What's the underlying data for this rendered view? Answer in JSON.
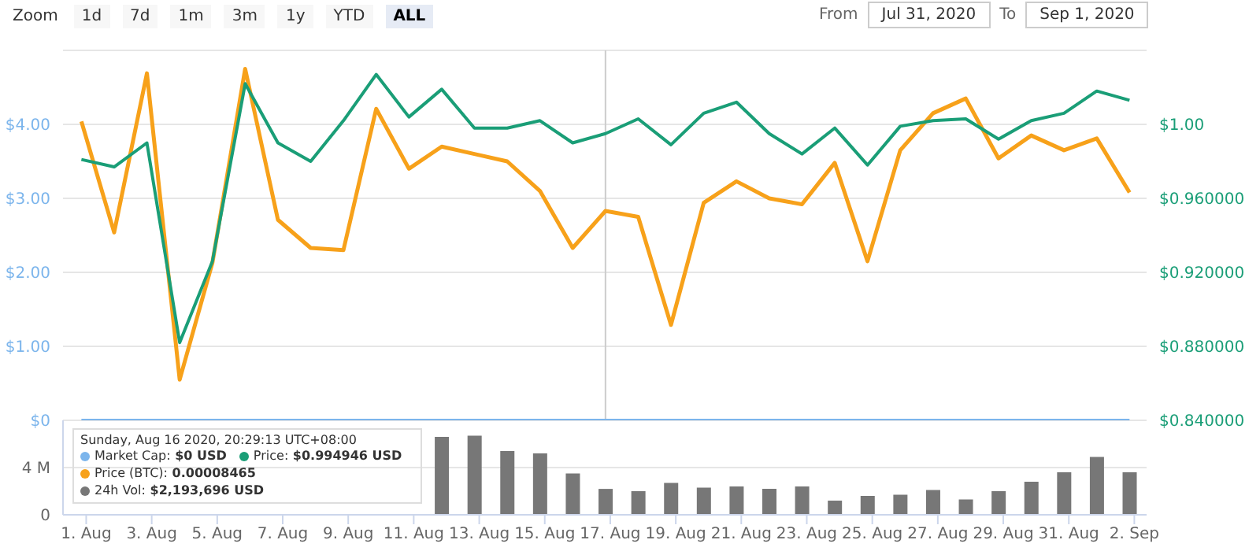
{
  "chart_data": [
    {
      "type": "line",
      "x": [
        "2020-07-31T20:29",
        "2020-08-01T20:29",
        "2020-08-02T20:29",
        "2020-08-03T20:29",
        "2020-08-04T20:29",
        "2020-08-05T20:29",
        "2020-08-06T20:29",
        "2020-08-07T20:29",
        "2020-08-08T20:29",
        "2020-08-09T20:29",
        "2020-08-10T20:29",
        "2020-08-11T20:29",
        "2020-08-12T20:29",
        "2020-08-13T20:29",
        "2020-08-14T20:29",
        "2020-08-15T20:29",
        "2020-08-16T20:29",
        "2020-08-17T20:29",
        "2020-08-18T20:29",
        "2020-08-19T20:29",
        "2020-08-20T20:29",
        "2020-08-21T20:29",
        "2020-08-22T20:29",
        "2020-08-23T20:29",
        "2020-08-24T20:29",
        "2020-08-25T20:29",
        "2020-08-26T20:29",
        "2020-08-27T20:29",
        "2020-08-28T20:29",
        "2020-08-29T20:29",
        "2020-08-30T20:29",
        "2020-08-31T20:29",
        "2020-09-01T20:29"
      ],
      "series": [
        {
          "color": "#7cb5ec",
          "values": [
            0,
            0,
            0,
            0,
            0,
            0,
            0,
            0,
            0,
            0,
            0,
            0,
            0,
            0,
            0,
            0,
            0,
            0,
            0,
            0,
            0,
            0,
            0,
            0,
            0,
            0,
            0,
            0,
            0,
            0,
            0,
            0,
            0
          ]
        },
        {
          "color": "#f7a11a",
          "values": [
            4.04,
            2.54,
            4.69,
            0.55,
            2.13,
            4.75,
            2.71,
            2.33,
            2.3,
            4.21,
            3.4,
            3.7,
            3.6,
            3.5,
            3.1,
            2.33,
            2.83,
            2.75,
            1.29,
            2.94,
            3.23,
            3.0,
            2.92,
            3.48,
            2.15,
            3.65,
            4.15,
            4.35,
            3.54,
            3.85,
            3.65,
            3.81,
            3.08
          ]
        },
        {
          "color": "#1a9e77",
          "axis": "y2",
          "values": [
            0.981,
            0.977,
            0.99,
            0.882,
            0.926,
            1.022,
            0.99,
            0.98,
            1.002,
            1.027,
            1.004,
            1.019,
            0.998,
            0.998,
            1.002,
            0.99,
            0.995,
            1.003,
            0.989,
            1.006,
            1.012,
            0.995,
            0.984,
            0.998,
            0.978,
            0.999,
            1.002,
            1.003,
            0.992,
            1.002,
            1.006,
            1.018,
            1.013
          ]
        }
      ],
      "xlim": [
        "2020-07-31T07:00",
        "2020-09-02T09:00"
      ],
      "ylim": [
        0,
        5
      ],
      "yticks": [
        {
          "value": 0,
          "label": "$0"
        },
        {
          "value": 1,
          "label": "$1.00"
        },
        {
          "value": 2,
          "label": "$2.00"
        },
        {
          "value": 3,
          "label": "$3.00"
        },
        {
          "value": 4,
          "label": "$4.00"
        },
        {
          "value": 5,
          "label": null
        }
      ],
      "y2lim": [
        0.84,
        1.04
      ],
      "y2ticks": [
        {
          "value": 0.84,
          "label": "$0.840000"
        },
        {
          "value": 0.88,
          "label": "$0.880000"
        },
        {
          "value": 0.92,
          "label": "$0.920000"
        },
        {
          "value": 0.96,
          "label": "$0.960000"
        },
        {
          "value": 1,
          "label": "$1.00"
        },
        {
          "value": 1.04,
          "label": null
        }
      ],
      "grid": "y",
      "marker": "none",
      "line_style": "solid",
      "tick_labels": "y",
      "ref_lines": [
        {
          "axis": "x",
          "value": "2020-08-16T20:29",
          "color": "#cccccc"
        }
      ],
      "annotations": [
        "Zoom",
        "1d",
        "7d",
        "1m",
        "3m",
        "1y",
        "YTD",
        "ALL",
        "From",
        "Jul 31, 2020",
        "To",
        "Sep 1, 2020",
        "Sunday, Aug 16 2020, 20:29:13 UTC+08:00",
        "Market Cap: $0 USD",
        "Price: $0.994946 USD",
        "Price (BTC): 0.00008465",
        "24h Vol: $2,193,696 USD"
      ]
    },
    {
      "type": "bar",
      "x": [
        "2020-08-11T20:29",
        "2020-08-12T20:29",
        "2020-08-13T20:29",
        "2020-08-14T20:29",
        "2020-08-15T20:29",
        "2020-08-16T20:29",
        "2020-08-17T20:29",
        "2020-08-18T20:29",
        "2020-08-19T20:29",
        "2020-08-20T20:29",
        "2020-08-21T20:29",
        "2020-08-22T20:29",
        "2020-08-23T20:29",
        "2020-08-24T20:29",
        "2020-08-25T20:29",
        "2020-08-26T20:29",
        "2020-08-27T20:29",
        "2020-08-28T20:29",
        "2020-08-29T20:29",
        "2020-08-30T20:29",
        "2020-08-31T20:29",
        "2020-09-01T20:29"
      ],
      "series": [
        {
          "color": "#777777",
          "values": [
            6600000,
            6700000,
            5400000,
            5200000,
            3500000,
            2193696,
            2000000,
            2700000,
            2300000,
            2400000,
            2200000,
            2400000,
            1200000,
            1600000,
            1700000,
            2100000,
            1300000,
            2000000,
            2800000,
            3600000,
            4900000,
            3600000
          ]
        }
      ],
      "xlim": [
        "2020-07-31T07:00",
        "2020-09-02T09:00"
      ],
      "xticks": [
        {
          "value": "2020-08-01",
          "label": "1. Aug"
        },
        {
          "value": "2020-08-03",
          "label": "3. Aug"
        },
        {
          "value": "2020-08-05",
          "label": "5. Aug"
        },
        {
          "value": "2020-08-07",
          "label": "7. Aug"
        },
        {
          "value": "2020-08-09",
          "label": "9. Aug"
        },
        {
          "value": "2020-08-11",
          "label": "11. Aug"
        },
        {
          "value": "2020-08-13",
          "label": "13. Aug"
        },
        {
          "value": "2020-08-15",
          "label": "15. Aug"
        },
        {
          "value": "2020-08-17",
          "label": "17. Aug"
        },
        {
          "value": "2020-08-19",
          "label": "19. Aug"
        },
        {
          "value": "2020-08-21",
          "label": "21. Aug"
        },
        {
          "value": "2020-08-23",
          "label": "23. Aug"
        },
        {
          "value": "2020-08-25",
          "label": "25. Aug"
        },
        {
          "value": "2020-08-27",
          "label": "27. Aug"
        },
        {
          "value": "2020-08-29",
          "label": "29. Aug"
        },
        {
          "value": "2020-08-31",
          "label": "31. Aug"
        },
        {
          "value": "2020-09-02",
          "label": "2. Sep"
        }
      ],
      "ylim": [
        0,
        8000000
      ],
      "yticks": [
        0,
        {
          "value": 4000000,
          "label": "4 M"
        }
      ],
      "grid": "y"
    }
  ]
}
